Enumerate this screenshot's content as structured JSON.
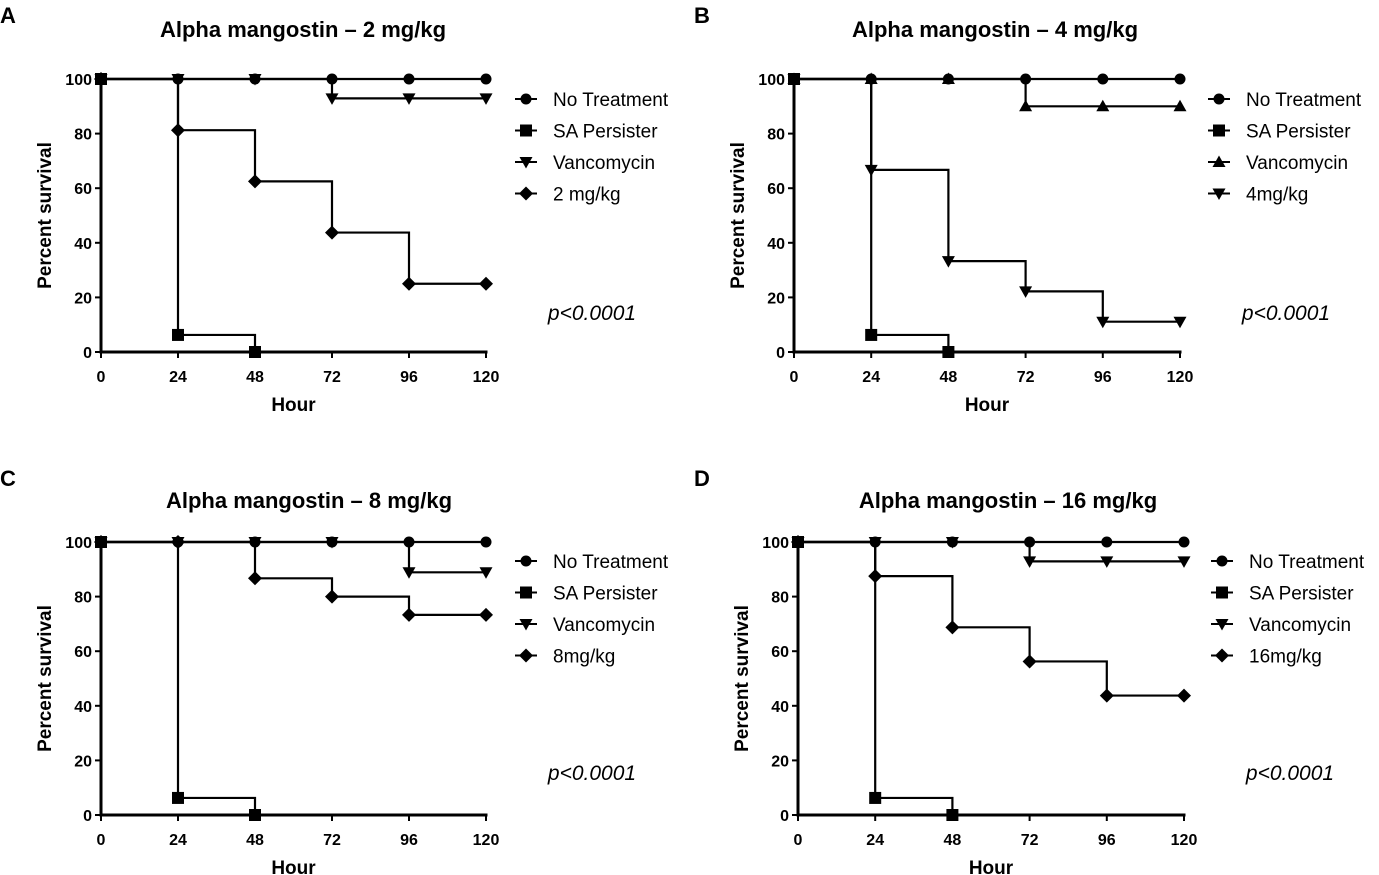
{
  "chart_data": [
    {
      "type": "line",
      "subtype": "kaplan-meier-survival",
      "panel_label": "A",
      "title": "Alpha mangostin – 2 mg/kg",
      "xlabel": "Hour",
      "ylabel": "Percent survival",
      "xlim": [
        0,
        120
      ],
      "ylim": [
        0,
        100
      ],
      "xticks": [
        0,
        24,
        48,
        72,
        96,
        120
      ],
      "yticks": [
        0,
        20,
        40,
        60,
        80,
        100
      ],
      "annotation": "p<0.0001",
      "legend_position": "right",
      "series": [
        {
          "name": "No Treatment",
          "marker": "circle",
          "x": [
            0,
            24,
            48,
            72,
            96,
            120
          ],
          "y": [
            100,
            100,
            100,
            100,
            100,
            100
          ]
        },
        {
          "name": "SA Persister",
          "marker": "square",
          "x": [
            0,
            24,
            48
          ],
          "y": [
            100,
            6.25,
            0
          ]
        },
        {
          "name": "Vancomycin",
          "marker": "triangle-down",
          "x": [
            0,
            24,
            48,
            72,
            96,
            120
          ],
          "y": [
            100,
            100,
            100,
            92.9,
            92.9,
            92.9
          ]
        },
        {
          "name": "2 mg/kg",
          "marker": "diamond",
          "x": [
            0,
            24,
            48,
            72,
            96,
            120
          ],
          "y": [
            100,
            81.25,
            62.5,
            43.75,
            25,
            25
          ]
        }
      ]
    },
    {
      "type": "line",
      "subtype": "kaplan-meier-survival",
      "panel_label": "B",
      "title": "Alpha mangostin – 4 mg/kg",
      "xlabel": "Hour",
      "ylabel": "Percent survival",
      "xlim": [
        0,
        120
      ],
      "ylim": [
        0,
        100
      ],
      "xticks": [
        0,
        24,
        48,
        72,
        96,
        120
      ],
      "yticks": [
        0,
        20,
        40,
        60,
        80,
        100
      ],
      "annotation": "p<0.0001",
      "legend_position": "right",
      "series": [
        {
          "name": "No Treatment",
          "marker": "circle",
          "x": [
            0,
            24,
            48,
            72,
            96,
            120
          ],
          "y": [
            100,
            100,
            100,
            100,
            100,
            100
          ]
        },
        {
          "name": "SA Persister",
          "marker": "square",
          "x": [
            0,
            24,
            48
          ],
          "y": [
            100,
            6.25,
            0
          ]
        },
        {
          "name": "Vancomycin",
          "marker": "triangle-up",
          "x": [
            0,
            24,
            48,
            72,
            96,
            120
          ],
          "y": [
            100,
            100,
            100,
            90,
            90,
            90
          ]
        },
        {
          "name": "4mg/kg",
          "marker": "triangle-down",
          "x": [
            0,
            24,
            48,
            72,
            96,
            120
          ],
          "y": [
            100,
            66.7,
            33.3,
            22.2,
            11.1,
            11.1
          ]
        }
      ]
    },
    {
      "type": "line",
      "subtype": "kaplan-meier-survival",
      "panel_label": "C",
      "title": "Alpha mangostin – 8 mg/kg",
      "xlabel": "Hour",
      "ylabel": "Percent survival",
      "xlim": [
        0,
        120
      ],
      "ylim": [
        0,
        100
      ],
      "xticks": [
        0,
        24,
        48,
        72,
        96,
        120
      ],
      "yticks": [
        0,
        20,
        40,
        60,
        80,
        100
      ],
      "annotation": "p<0.0001",
      "legend_position": "right",
      "series": [
        {
          "name": "No Treatment",
          "marker": "circle",
          "x": [
            0,
            24,
            48,
            72,
            96,
            120
          ],
          "y": [
            100,
            100,
            100,
            100,
            100,
            100
          ]
        },
        {
          "name": "SA Persister",
          "marker": "square",
          "x": [
            0,
            24,
            48
          ],
          "y": [
            100,
            6.25,
            0
          ]
        },
        {
          "name": "Vancomycin",
          "marker": "triangle-down",
          "x": [
            0,
            24,
            48,
            72,
            96,
            120
          ],
          "y": [
            100,
            100,
            100,
            100,
            88.9,
            88.9
          ]
        },
        {
          "name": "8mg/kg",
          "marker": "diamond",
          "x": [
            0,
            24,
            48,
            72,
            96,
            120
          ],
          "y": [
            100,
            100,
            86.7,
            80,
            73.3,
            73.3
          ]
        }
      ]
    },
    {
      "type": "line",
      "subtype": "kaplan-meier-survival",
      "panel_label": "D",
      "title": "Alpha mangostin – 16 mg/kg",
      "xlabel": "Hour",
      "ylabel": "Percent survival",
      "xlim": [
        0,
        120
      ],
      "ylim": [
        0,
        100
      ],
      "xticks": [
        0,
        24,
        48,
        72,
        96,
        120
      ],
      "yticks": [
        0,
        20,
        40,
        60,
        80,
        100
      ],
      "annotation": "p<0.0001",
      "legend_position": "right",
      "series": [
        {
          "name": "No Treatment",
          "marker": "circle",
          "x": [
            0,
            24,
            48,
            72,
            96,
            120
          ],
          "y": [
            100,
            100,
            100,
            100,
            100,
            100
          ]
        },
        {
          "name": "SA Persister",
          "marker": "square",
          "x": [
            0,
            24,
            48
          ],
          "y": [
            100,
            6.25,
            0
          ]
        },
        {
          "name": "Vancomycin",
          "marker": "triangle-down",
          "x": [
            0,
            24,
            48,
            72,
            96,
            120
          ],
          "y": [
            100,
            100,
            100,
            92.9,
            92.9,
            92.9
          ]
        },
        {
          "name": "16mg/kg",
          "marker": "diamond",
          "x": [
            0,
            24,
            48,
            72,
            96,
            120
          ],
          "y": [
            100,
            87.5,
            68.75,
            56.25,
            43.75,
            43.75
          ]
        }
      ]
    }
  ]
}
